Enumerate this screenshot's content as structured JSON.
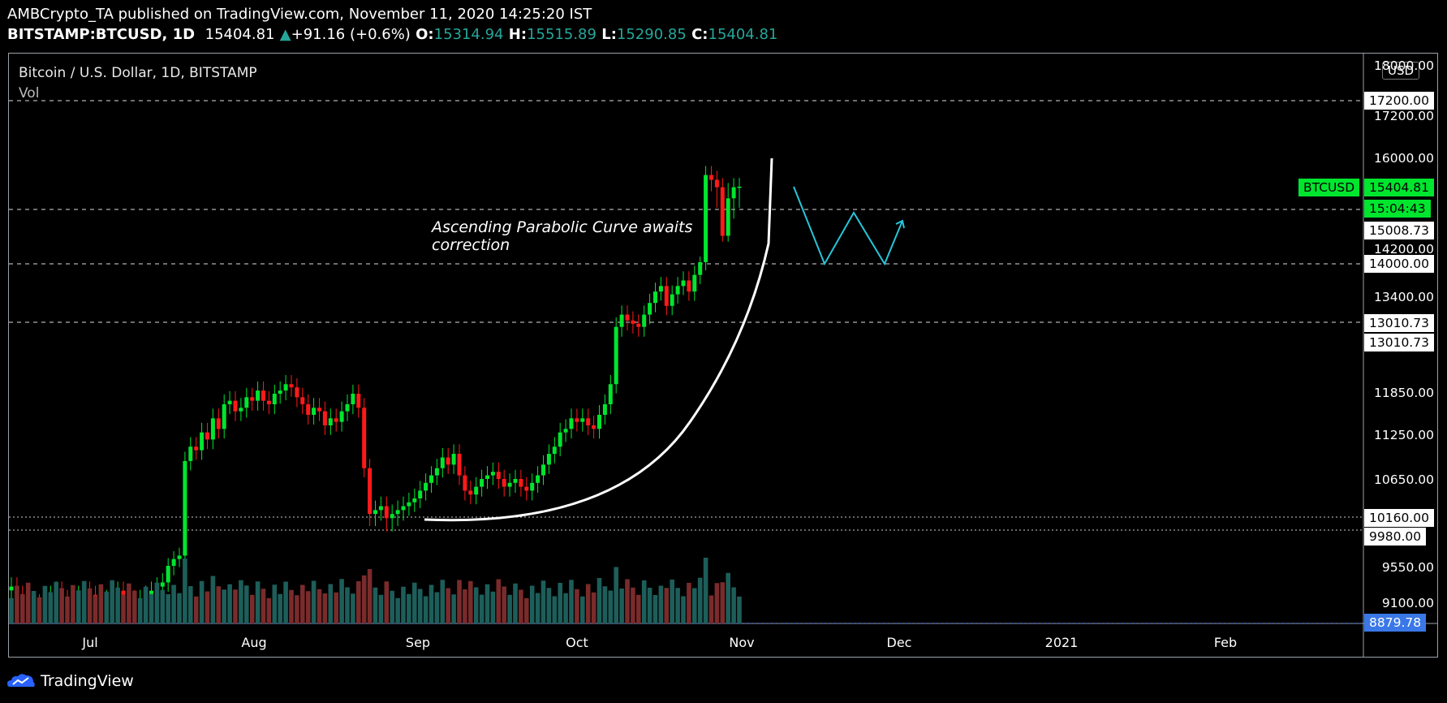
{
  "header": {
    "line1": "AMBCrypto_TA published on TradingView.com, November 11, 2020 14:25:20 IST",
    "symbol": "BITSTAMP:BTCUSD, 1D",
    "last": "15404.81",
    "change": "+91.16 (+0.6%)",
    "o_label": "O:",
    "o": "15314.94",
    "h_label": "H:",
    "h": "15515.89",
    "l_label": "L:",
    "l": "15290.85",
    "c_label": "C:",
    "c": "15404.81"
  },
  "chart_title": "Bitcoin / U.S. Dollar, 1D, BITSTAMP",
  "vol_label": "Vol",
  "currency_button": "USD",
  "annotation": [
    "Ascending Parabolic Curve awaits",
    "correction"
  ],
  "brand": "TradingView",
  "colors": {
    "up": "#00e62e",
    "down": "#ff1a1a",
    "vol_up": "#1d5e5a",
    "vol_down": "#7a2b2b",
    "projection": "#26c6da",
    "curve": "#ffffff",
    "price_tag": "#00e62e",
    "low_tag": "#3b78e7"
  },
  "price_axis": {
    "plain_labels": [
      "18000.00",
      "17200.00",
      "16000.00",
      "14200.00",
      "13400.00",
      "11850.00",
      "11250.00",
      "10650.00",
      "9550.00",
      "9100.00"
    ],
    "boxed_labels": [
      "17200.00",
      "15008.73",
      "14000.00",
      "13010.73",
      "13010.73",
      "10160.00",
      "9980.00"
    ],
    "symbol_tag": "BTCUSD",
    "price_tag": "15404.81",
    "countdown": "15:04:43",
    "low_tag": "8879.78"
  },
  "time_axis": [
    "Jul",
    "Aug",
    "Sep",
    "Oct",
    "Nov",
    "Dec",
    "2021",
    "Feb"
  ],
  "chart_data": {
    "type": "candlestick",
    "title": "Bitcoin / U.S. Dollar, 1D, BITSTAMP",
    "interval": "1D",
    "exchange": "BITSTAMP",
    "series": [
      {
        "name": "BTCUSD",
        "last": 15404.81,
        "open": 15314.94,
        "high": 15515.89,
        "low": 15290.85,
        "close": 15404.81
      }
    ],
    "horizontal_levels": [
      17200,
      15008.73,
      14000,
      13010.73,
      10160,
      9980
    ],
    "daily_closes_approx": [
      9300,
      9200,
      9150,
      9100,
      9100,
      9050,
      9100,
      9200,
      9250,
      9150,
      9100,
      9050,
      9200,
      9250,
      9200,
      9150,
      9100,
      9150,
      9200,
      9250,
      9200,
      9150,
      9100,
      9150,
      9200,
      9250,
      9300,
      9350,
      9550,
      9650,
      9700,
      10900,
      11100,
      11050,
      11300,
      11200,
      11500,
      11350,
      11700,
      11750,
      11600,
      11650,
      11800,
      11750,
      11900,
      11750,
      11700,
      11850,
      11900,
      12000,
      11950,
      11800,
      11700,
      11550,
      11650,
      11600,
      11400,
      11500,
      11450,
      11600,
      11700,
      11850,
      11650,
      10800,
      10200,
      10250,
      10300,
      10150,
      10200,
      10250,
      10300,
      10350,
      10400,
      10500,
      10600,
      10700,
      10800,
      10950,
      10850,
      11000,
      10700,
      10500,
      10450,
      10550,
      10650,
      10700,
      10750,
      10650,
      10550,
      10600,
      10650,
      10550,
      10500,
      10600,
      10700,
      10850,
      11000,
      11100,
      11300,
      11350,
      11500,
      11450,
      11500,
      11400,
      11350,
      11550,
      11700,
      12000,
      12900,
      13100,
      13000,
      12950,
      12900,
      13100,
      13300,
      13500,
      13600,
      13250,
      13450,
      13600,
      13700,
      13500,
      13800,
      14050,
      15650,
      15550,
      15400,
      14850,
      15300,
      15400,
      15404.81
    ],
    "projection_path": [
      15404.81,
      14000,
      15008.73,
      14000,
      15008.73
    ],
    "x_range_months": [
      "Jul",
      "Aug",
      "Sep",
      "Oct",
      "Nov",
      "Dec",
      "2021",
      "Feb"
    ]
  }
}
